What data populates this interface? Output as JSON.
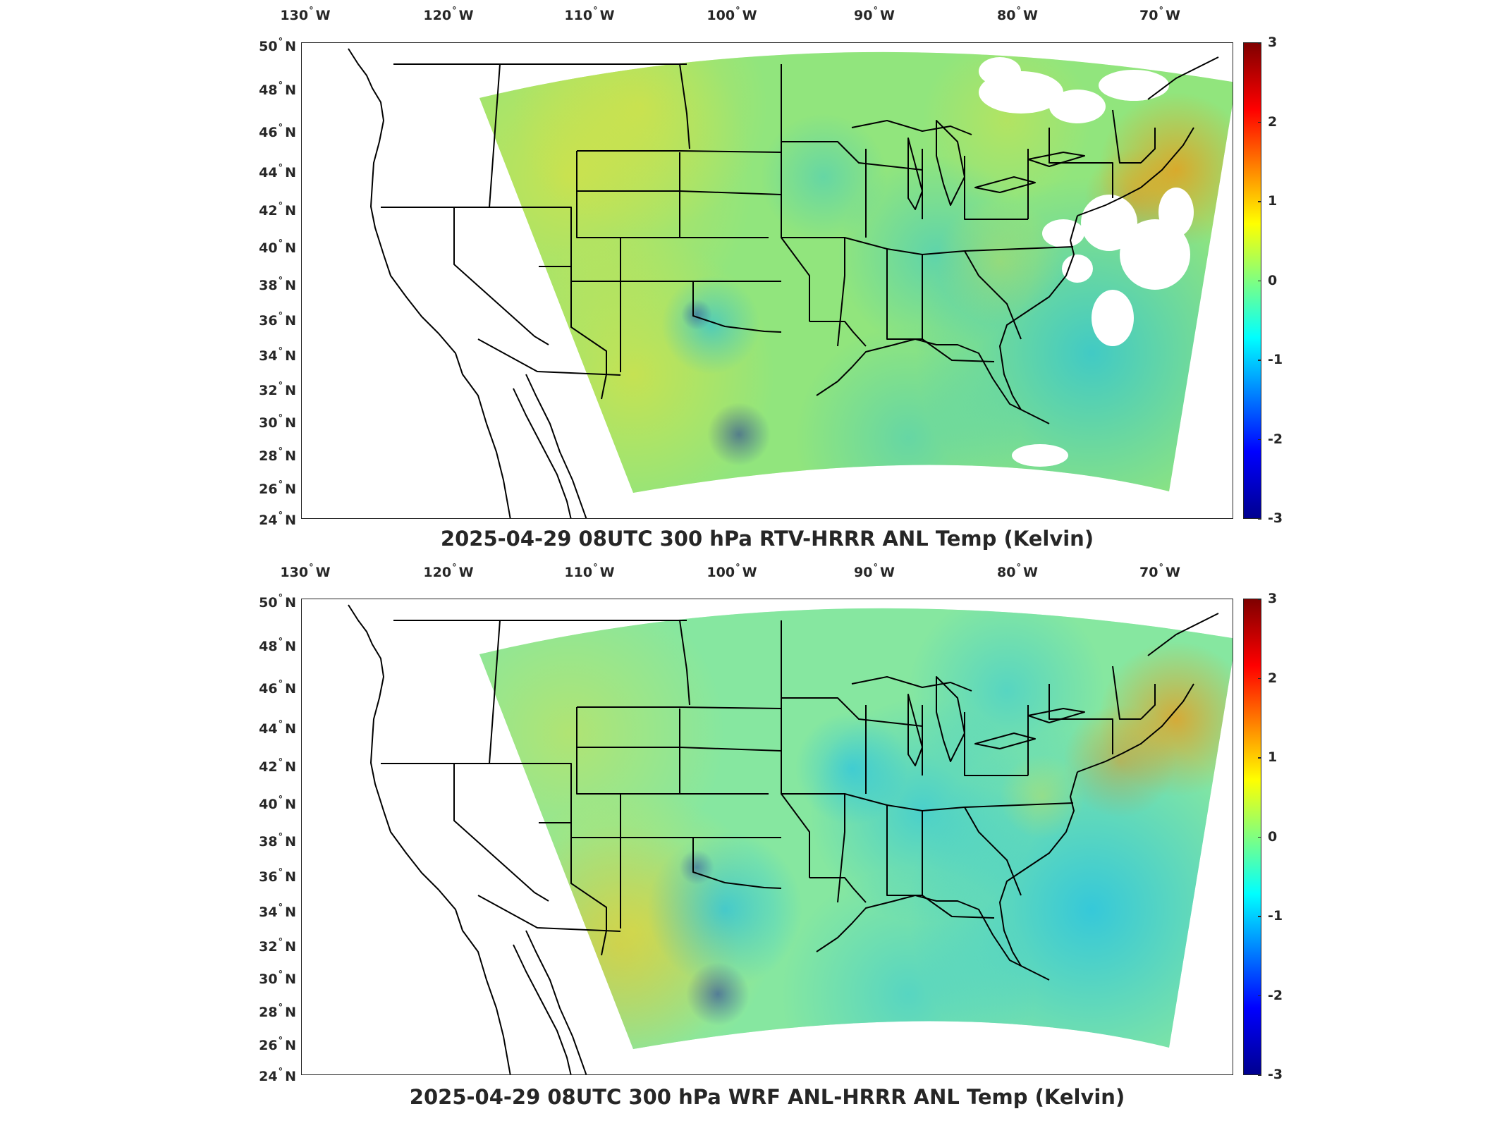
{
  "palette": {
    "cold": "#0000a0",
    "cool": "#00b4ff",
    "neutral": "#7fe8a0",
    "green": "#9be36a",
    "warm": "#f0e030",
    "hot": "#ff8a00",
    "hottest": "#a00000",
    "missing": "#ffffff",
    "outline": "#000000"
  },
  "colorbar": {
    "colormap": "jet",
    "min": -3,
    "max": 3,
    "ticks": [
      "3",
      "2",
      "1",
      "0",
      "-1",
      "-2",
      "-3"
    ]
  },
  "axes": {
    "longitude_labels": [
      {
        "value": "130",
        "hemi": "W"
      },
      {
        "value": "120",
        "hemi": "W"
      },
      {
        "value": "110",
        "hemi": "W"
      },
      {
        "value": "100",
        "hemi": "W"
      },
      {
        "value": "90",
        "hemi": "W"
      },
      {
        "value": "80",
        "hemi": "W"
      },
      {
        "value": "70",
        "hemi": "W"
      }
    ],
    "latitude_labels": [
      {
        "value": "50",
        "hemi": "N"
      },
      {
        "value": "48",
        "hemi": "N"
      },
      {
        "value": "46",
        "hemi": "N"
      },
      {
        "value": "44",
        "hemi": "N"
      },
      {
        "value": "42",
        "hemi": "N"
      },
      {
        "value": "40",
        "hemi": "N"
      },
      {
        "value": "38",
        "hemi": "N"
      },
      {
        "value": "36",
        "hemi": "N"
      },
      {
        "value": "34",
        "hemi": "N"
      },
      {
        "value": "32",
        "hemi": "N"
      },
      {
        "value": "30",
        "hemi": "N"
      },
      {
        "value": "28",
        "hemi": "N"
      },
      {
        "value": "26",
        "hemi": "N"
      },
      {
        "value": "24",
        "hemi": "N"
      }
    ]
  },
  "panels": [
    {
      "id": "top",
      "title": "2025-04-29 08UTC 300 hPa RTV-HRRR ANL Temp (Kelvin)",
      "has_missing_data_patches": true
    },
    {
      "id": "bottom",
      "title": "2025-04-29 08UTC 300 hPa WRF ANL-HRRR ANL Temp (Kelvin)",
      "has_missing_data_patches": false
    }
  ]
}
